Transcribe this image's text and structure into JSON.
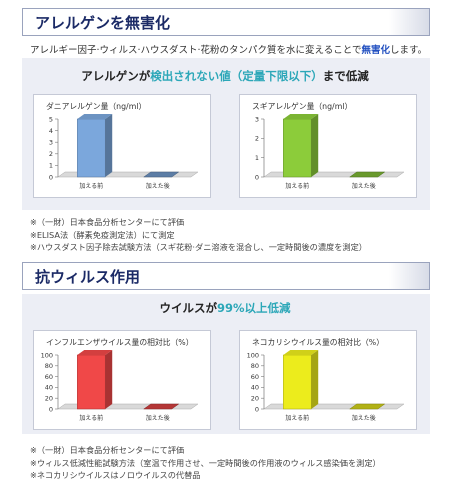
{
  "section1": {
    "title": "アレルゲンを無害化",
    "lead_text": "アレルギー因子·ウィルス·ハウスダスト·花粉のタンパク質を水に変えることで",
    "lead_highlight": "無害化",
    "lead_end": "します。",
    "subtitle_pre": "アレルゲンが",
    "subtitle_hl": "検出されない値（定量下限以下）",
    "subtitle_post": "まで低減",
    "notes": [
      "※（一財）日本食品分析センターにて評価",
      "※ELISA法（酵素免疫測定法）にて測定",
      "※ハウスダスト因子除去試験方法（スギ花粉·ダニ溶液を混合し、一定時間後の濃度を測定）"
    ]
  },
  "section2": {
    "title": "抗ウィルス作用",
    "subtitle_pre": "ウイルスが",
    "subtitle_hl": "99%以上低減",
    "notes": [
      "※（一財）日本食品分析センターにて評価",
      "※ウィルス低減性能試験方法（室温で作用させ、一定時間後の作用液のウィルス感染価を測定）",
      "※ネコカリシウイルスはノロウイルスの代替品"
    ]
  },
  "colors": {
    "blue": "#7ba7dc",
    "green": "#8ccc3a",
    "red": "#f04848",
    "yellow": "#ecec1c",
    "navy": "#1b2a66",
    "teal": "#2ca7b8"
  },
  "chart_data": [
    {
      "type": "bar",
      "title": "ダニアレルゲン量（ng/ml）",
      "categories": [
        "加える前",
        "加えた後"
      ],
      "values": [
        5,
        0
      ],
      "ylim": [
        0,
        5
      ],
      "yticks": [
        0,
        1,
        2,
        3,
        4,
        5
      ],
      "color": "#7ba7dc"
    },
    {
      "type": "bar",
      "title": "スギアレルゲン量（ng/ml）",
      "categories": [
        "加える前",
        "加えた後"
      ],
      "values": [
        3,
        0
      ],
      "ylim": [
        0,
        3
      ],
      "yticks": [
        0,
        1,
        2,
        3
      ],
      "color": "#8ccc3a"
    },
    {
      "type": "bar",
      "title": "インフルエンザウイルス量の相対比（%）",
      "categories": [
        "加える前",
        "加えた後"
      ],
      "values": [
        100,
        1
      ],
      "ylim": [
        0,
        100
      ],
      "yticks": [
        0,
        20,
        40,
        60,
        80,
        100
      ],
      "color": "#f04848"
    },
    {
      "type": "bar",
      "title": "ネコカリシウイルス量の相対比（%）",
      "categories": [
        "加える前",
        "加えた後"
      ],
      "values": [
        100,
        1
      ],
      "ylim": [
        0,
        100
      ],
      "yticks": [
        0,
        20,
        40,
        60,
        80,
        100
      ],
      "color": "#ecec1c"
    }
  ]
}
